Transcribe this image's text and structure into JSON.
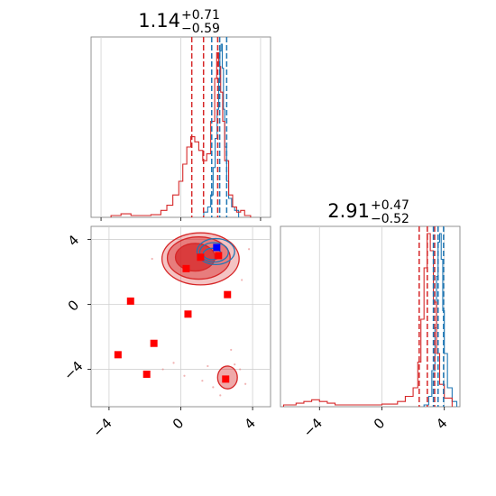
{
  "chart_data": [
    {
      "panel": "marginal-param1",
      "type": "line",
      "title": {
        "median": "1.14",
        "plus": "+0.71",
        "minus": "−0.59"
      },
      "xlim": [
        -4.5,
        4.5
      ],
      "x_ticks": [
        -4,
        0,
        4
      ],
      "grid": true,
      "series": [
        {
          "color": "#1f77b4",
          "x": [
            1.15,
            1.35,
            1.5,
            1.62,
            1.72,
            1.82,
            1.9,
            1.96,
            2.02,
            2.08,
            2.14,
            2.2,
            2.3,
            2.4,
            2.55,
            2.7,
            2.9
          ],
          "y": [
            0.02,
            0.05,
            0.12,
            0.28,
            0.45,
            0.62,
            0.8,
            0.96,
            1.0,
            0.86,
            0.62,
            0.4,
            0.2,
            0.1,
            0.05,
            0.03,
            0.0
          ]
        },
        {
          "color": "#d62728",
          "x": [
            -3.5,
            -3.0,
            -2.5,
            -1.5,
            -1.0,
            -0.7,
            -0.4,
            -0.1,
            0.1,
            0.3,
            0.5,
            0.7,
            0.9,
            1.1,
            1.3,
            1.5,
            1.7,
            1.8,
            1.9,
            2.0,
            2.1,
            2.2,
            2.4,
            2.6,
            2.8,
            3.0,
            3.2,
            3.5
          ],
          "y": [
            0.0,
            0.01,
            0.0,
            0.005,
            0.03,
            0.06,
            0.12,
            0.2,
            0.3,
            0.4,
            0.46,
            0.43,
            0.38,
            0.32,
            0.36,
            0.55,
            0.8,
            0.95,
            0.87,
            0.72,
            0.55,
            0.32,
            0.12,
            0.05,
            0.02,
            0.03,
            0.0,
            0.0
          ]
        }
      ],
      "quantiles": [
        {
          "color": "#d62728",
          "x": [
            0.55,
            1.14,
            1.85
          ]
        },
        {
          "color": "#1f77b4",
          "x": [
            1.55,
            1.95,
            2.3
          ]
        }
      ]
    },
    {
      "panel": "marginal-param2",
      "type": "line",
      "title": {
        "median": "2.91",
        "plus": "+0.47",
        "minus": "−0.52"
      },
      "xlim": [
        -6.5,
        5
      ],
      "x_ticks": [
        -4,
        0,
        4
      ],
      "grid": true,
      "series": [
        {
          "color": "#1f77b4",
          "x": [
            2.7,
            3.0,
            3.2,
            3.4,
            3.5,
            3.6,
            3.7,
            3.8,
            3.9,
            4.0,
            4.2,
            4.5,
            4.8
          ],
          "y": [
            0.0,
            0.05,
            0.2,
            0.45,
            0.75,
            0.95,
            1.0,
            0.85,
            0.55,
            0.3,
            0.1,
            0.02,
            0.0
          ]
        },
        {
          "color": "#d62728",
          "x": [
            -6.3,
            -5.5,
            -5.0,
            -4.5,
            -4.0,
            -3.5,
            -3.0,
            -2.0,
            0.0,
            1.0,
            1.5,
            2.0,
            2.3,
            2.5,
            2.7,
            2.9,
            3.1,
            3.3,
            3.5,
            3.7,
            4.0,
            4.5
          ],
          "y": [
            0.0,
            0.01,
            0.02,
            0.03,
            0.02,
            0.01,
            0.0,
            0.0,
            0.005,
            0.02,
            0.05,
            0.1,
            0.25,
            0.5,
            0.8,
            1.0,
            0.9,
            0.6,
            0.3,
            0.12,
            0.04,
            0.0
          ]
        }
      ],
      "quantiles": [
        {
          "color": "#d62728",
          "x": [
            2.39,
            2.91,
            3.38
          ]
        },
        {
          "color": "#1f77b4",
          "x": [
            3.3,
            3.6,
            3.95
          ]
        }
      ]
    },
    {
      "panel": "joint-param1-param2",
      "type": "scatter",
      "xlim": [
        -5,
        5
      ],
      "ylim": [
        -6.3,
        4.8
      ],
      "x_ticks": [
        -4,
        0,
        4
      ],
      "y_ticks": [
        4,
        0,
        -4
      ],
      "grid": true,
      "red_contours": [
        {
          "cx": 0.8,
          "cy": 2.9,
          "rx": 1.1,
          "ry": 0.85,
          "opacity": 0.75
        },
        {
          "cx": 1.0,
          "cy": 2.85,
          "rx": 1.75,
          "ry": 1.3,
          "opacity": 0.45
        },
        {
          "cx": 1.1,
          "cy": 2.8,
          "rx": 2.15,
          "ry": 1.6,
          "opacity": 0.28
        },
        {
          "cx": 2.6,
          "cy": -4.5,
          "rx": 0.55,
          "ry": 0.7,
          "opacity": 0.4
        }
      ],
      "blue_contours": [
        {
          "cx": 1.75,
          "cy": 3.1,
          "rx": 0.5,
          "ry": 0.35
        },
        {
          "cx": 1.85,
          "cy": 3.2,
          "rx": 0.8,
          "ry": 0.6
        },
        {
          "cx": 1.95,
          "cy": 3.25,
          "rx": 1.05,
          "ry": 0.8
        }
      ],
      "red_points": [
        [
          0.3,
          2.2
        ],
        [
          1.1,
          2.9
        ],
        [
          2.1,
          3.0
        ],
        [
          2.6,
          0.6
        ],
        [
          0.4,
          -0.6
        ],
        [
          -2.8,
          0.2
        ],
        [
          -1.5,
          -2.4
        ],
        [
          -1.9,
          -4.3
        ],
        [
          -3.5,
          -3.1
        ],
        [
          2.5,
          -4.6
        ]
      ],
      "blue_points": [
        [
          2.0,
          3.5
        ]
      ],
      "faint_red_points": [
        [
          -1.0,
          -4.0
        ],
        [
          -0.4,
          -3.6
        ],
        [
          0.2,
          -4.4
        ],
        [
          1.5,
          -3.8
        ],
        [
          3.3,
          -4.0
        ],
        [
          3.6,
          -4.9
        ],
        [
          1.8,
          -5.1
        ],
        [
          3.0,
          -3.7
        ],
        [
          -1.6,
          2.8
        ],
        [
          3.4,
          1.5
        ],
        [
          3.8,
          3.4
        ],
        [
          2.8,
          -2.8
        ],
        [
          1.2,
          -4.7
        ],
        [
          2.2,
          -5.6
        ],
        [
          -0.7,
          3.1
        ]
      ]
    }
  ]
}
